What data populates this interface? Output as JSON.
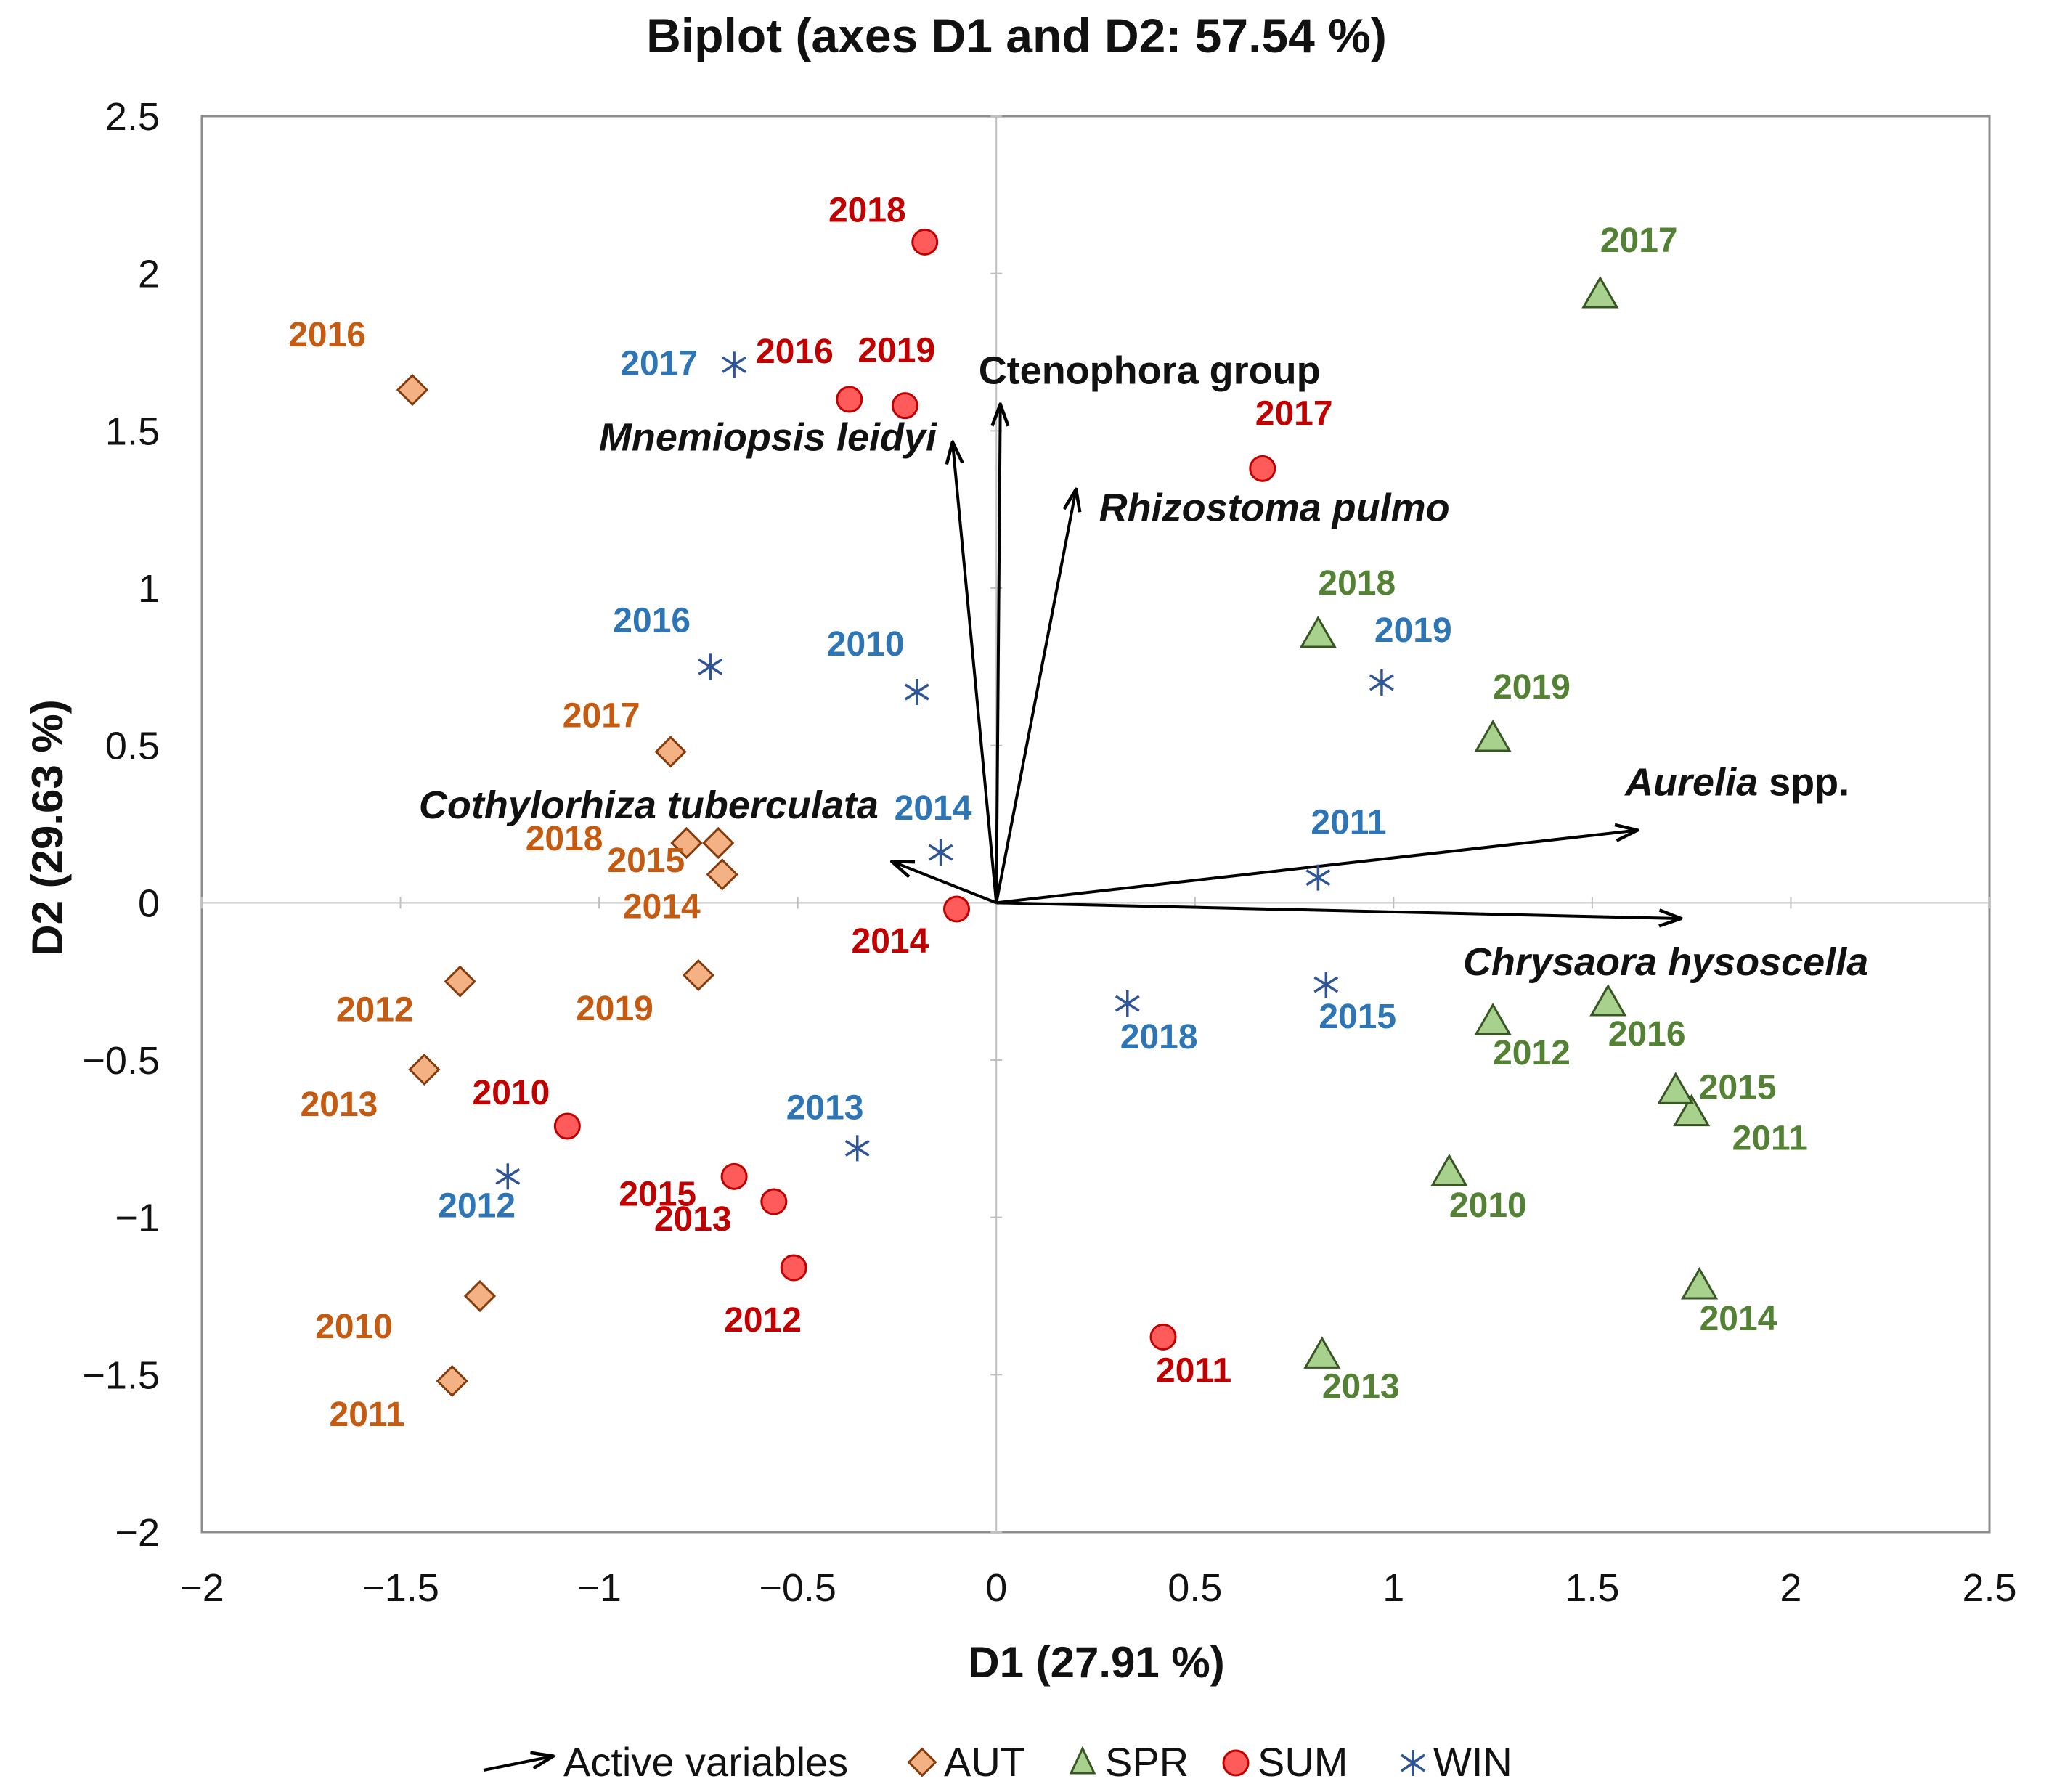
{
  "chart_data": {
    "type": "scatter",
    "title": "Biplot (axes D1 and D2: 57.54 %)",
    "xlabel": "D1 (27.91 %)",
    "ylabel": "D2 (29.63 %)",
    "xlim": [
      -2,
      2.5
    ],
    "ylim": [
      -2,
      2.5
    ],
    "xticks": [
      -2,
      -1.5,
      -1,
      -0.5,
      0,
      0.5,
      1,
      1.5,
      2,
      2.5
    ],
    "yticks": [
      -2,
      -1.5,
      -1,
      -0.5,
      0,
      0.5,
      1,
      1.5,
      2,
      2.5
    ],
    "xtick_labels": [
      "−2",
      "−1.5",
      "−1",
      "−0.5",
      "0",
      "0.5",
      "1",
      "1.5",
      "2",
      "2.5"
    ],
    "ytick_labels": [
      "−2",
      "−1.5",
      "−1",
      "−0.5",
      "0",
      "0.5",
      "1",
      "1.5",
      "2",
      "2.5"
    ],
    "grid": false,
    "legend_position": "bottom",
    "legend": {
      "active_variables": "Active variables",
      "series_names": [
        "AUT",
        "SPR",
        "SUM",
        "WIN"
      ]
    },
    "series": [
      {
        "name": "AUT",
        "marker": "diamond",
        "color": "#F4B183",
        "label_color": "#C55A11",
        "points": [
          {
            "label": "2010",
            "x": -1.3,
            "y": -1.25
          },
          {
            "label": "2011",
            "x": -1.37,
            "y": -1.52
          },
          {
            "label": "2012",
            "x": -1.35,
            "y": -0.25
          },
          {
            "label": "2013",
            "x": -1.44,
            "y": -0.53
          },
          {
            "label": "2014",
            "x": -0.69,
            "y": 0.09
          },
          {
            "label": "2015",
            "x": -0.7,
            "y": 0.19
          },
          {
            "label": "2016",
            "x": -1.47,
            "y": 1.63
          },
          {
            "label": "2017",
            "x": -0.82,
            "y": 0.48
          },
          {
            "label": "2018",
            "x": -0.78,
            "y": 0.19
          },
          {
            "label": "2019",
            "x": -0.75,
            "y": -0.23
          }
        ]
      },
      {
        "name": "SPR",
        "marker": "triangle",
        "color": "#A9D18E",
        "label_color": "#548235",
        "points": [
          {
            "label": "2010",
            "x": 1.14,
            "y": -0.86
          },
          {
            "label": "2011",
            "x": 1.75,
            "y": -0.67
          },
          {
            "label": "2012",
            "x": 1.25,
            "y": -0.38
          },
          {
            "label": "2013",
            "x": 0.82,
            "y": -1.44
          },
          {
            "label": "2014",
            "x": 1.77,
            "y": -1.22
          },
          {
            "label": "2015",
            "x": 1.71,
            "y": -0.6
          },
          {
            "label": "2016",
            "x": 1.54,
            "y": -0.32
          },
          {
            "label": "2017",
            "x": 1.52,
            "y": 1.93
          },
          {
            "label": "2018",
            "x": 0.81,
            "y": 0.85
          },
          {
            "label": "2019",
            "x": 1.25,
            "y": 0.52
          }
        ]
      },
      {
        "name": "SUM",
        "marker": "circle",
        "color": "#FF5B5B",
        "label_color": "#C00000",
        "points": [
          {
            "label": "2010",
            "x": -1.08,
            "y": -0.71
          },
          {
            "label": "2011",
            "x": 0.42,
            "y": -1.38
          },
          {
            "label": "2012",
            "x": -0.51,
            "y": -1.16
          },
          {
            "label": "2013",
            "x": -0.56,
            "y": -0.95
          },
          {
            "label": "2014",
            "x": -0.1,
            "y": -0.02
          },
          {
            "label": "2015",
            "x": -0.66,
            "y": -0.87
          },
          {
            "label": "2016",
            "x": -0.37,
            "y": 1.6
          },
          {
            "label": "2017",
            "x": 0.67,
            "y": 1.38
          },
          {
            "label": "2018",
            "x": -0.18,
            "y": 2.1
          },
          {
            "label": "2019",
            "x": -0.23,
            "y": 1.58
          }
        ]
      },
      {
        "name": "WIN",
        "marker": "asterisk",
        "color": "#2F5597",
        "label_color": "#2E75B6",
        "points": [
          {
            "label": "2010",
            "x": -0.2,
            "y": 0.67
          },
          {
            "label": "2011",
            "x": 0.81,
            "y": 0.08
          },
          {
            "label": "2012",
            "x": -1.23,
            "y": -0.87
          },
          {
            "label": "2013",
            "x": -0.35,
            "y": -0.78
          },
          {
            "label": "2014",
            "x": -0.14,
            "y": 0.16
          },
          {
            "label": "2015",
            "x": 0.83,
            "y": -0.26
          },
          {
            "label": "2016",
            "x": -0.72,
            "y": 0.75
          },
          {
            "label": "2017",
            "x": -0.66,
            "y": 1.71
          },
          {
            "label": "2018",
            "x": 0.33,
            "y": -0.32
          },
          {
            "label": "2019",
            "x": 0.97,
            "y": 0.7
          }
        ]
      }
    ],
    "active_variables": [
      {
        "name": "Ctenophora group",
        "x": 0.01,
        "y": 1.58,
        "italic": false
      },
      {
        "name": "Mnemiopsis leidyi",
        "x": -0.11,
        "y": 1.46,
        "italic": true
      },
      {
        "name": "Rhizostoma pulmo",
        "x": 0.2,
        "y": 1.31,
        "italic": true
      },
      {
        "name": "Cothylorhiza tuberculata",
        "x": -0.26,
        "y": 0.13,
        "italic": true
      },
      {
        "name": "Aurelia spp.",
        "name_italic_part": "Aurelia",
        "name_plain_part": " spp.",
        "x": 1.61,
        "y": 0.23,
        "italic": true
      },
      {
        "name": "Chrysaora hysoscella",
        "x": 1.72,
        "y": -0.05,
        "italic": true
      }
    ]
  }
}
